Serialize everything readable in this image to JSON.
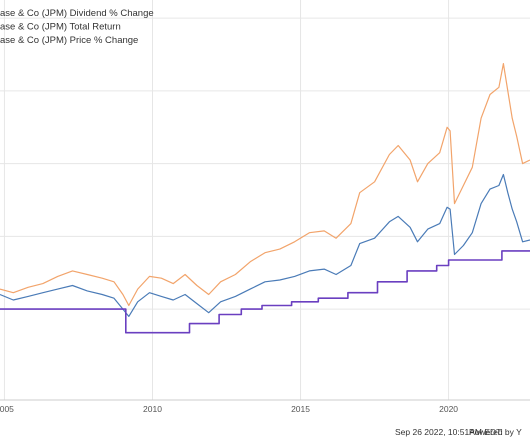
{
  "footer": {
    "timestamp": "Sep 26 2022, 10:51AM EDT.",
    "powered_by": "Powered by Y"
  },
  "colors": {
    "dividend": "#6a3fc0",
    "total_return": "#f2a46b",
    "price": "#4a7bb7",
    "grid": "#e6e6e6"
  },
  "chart_data": {
    "type": "line",
    "x_tick_labels": [
      "2005",
      "2010",
      "2015",
      "2020"
    ],
    "xlim": [
      2004.85,
      2022.75
    ],
    "ylim": [
      -0.5,
      1.7
    ],
    "y_gridlines": [
      0,
      0.4,
      0.8,
      1.2,
      1.6
    ],
    "grid": true,
    "legend_position": "top-left",
    "series": [
      {
        "key": "dividend",
        "name": "ase & Co (JPM) Dividend % Change",
        "color": "#6a3fc0",
        "step": true,
        "points": [
          [
            2004.85,
            0.0
          ],
          [
            2009.1,
            0.0
          ],
          [
            2009.1,
            -0.13
          ],
          [
            2010.15,
            -0.13
          ],
          [
            2010.15,
            -0.13
          ],
          [
            2011.25,
            -0.13
          ],
          [
            2011.25,
            -0.08
          ],
          [
            2012.25,
            -0.08
          ],
          [
            2012.25,
            -0.03
          ],
          [
            2013.0,
            -0.03
          ],
          [
            2013.0,
            0.0
          ],
          [
            2013.7,
            0.0
          ],
          [
            2013.7,
            0.02
          ],
          [
            2014.7,
            0.02
          ],
          [
            2014.7,
            0.04
          ],
          [
            2015.6,
            0.04
          ],
          [
            2015.6,
            0.06
          ],
          [
            2016.6,
            0.06
          ],
          [
            2016.6,
            0.09
          ],
          [
            2017.6,
            0.09
          ],
          [
            2017.6,
            0.15
          ],
          [
            2018.6,
            0.15
          ],
          [
            2018.6,
            0.21
          ],
          [
            2019.6,
            0.21
          ],
          [
            2019.6,
            0.24
          ],
          [
            2020.0,
            0.24
          ],
          [
            2020.0,
            0.27
          ],
          [
            2021.8,
            0.27
          ],
          [
            2021.8,
            0.32
          ],
          [
            2022.75,
            0.32
          ]
        ]
      },
      {
        "key": "total_return",
        "name": "ase & Co (JPM) Total Return",
        "color": "#f2a46b",
        "step": false,
        "points": [
          [
            2004.85,
            0.11
          ],
          [
            2005.3,
            0.09
          ],
          [
            2005.8,
            0.12
          ],
          [
            2006.3,
            0.14
          ],
          [
            2006.8,
            0.18
          ],
          [
            2007.3,
            0.21
          ],
          [
            2007.8,
            0.19
          ],
          [
            2008.3,
            0.17
          ],
          [
            2008.7,
            0.15
          ],
          [
            2009.0,
            0.08
          ],
          [
            2009.2,
            0.02
          ],
          [
            2009.5,
            0.11
          ],
          [
            2009.9,
            0.18
          ],
          [
            2010.3,
            0.17
          ],
          [
            2010.7,
            0.14
          ],
          [
            2011.1,
            0.19
          ],
          [
            2011.5,
            0.13
          ],
          [
            2011.9,
            0.08
          ],
          [
            2012.3,
            0.15
          ],
          [
            2012.8,
            0.19
          ],
          [
            2013.3,
            0.26
          ],
          [
            2013.8,
            0.31
          ],
          [
            2014.3,
            0.33
          ],
          [
            2014.8,
            0.37
          ],
          [
            2015.3,
            0.42
          ],
          [
            2015.8,
            0.43
          ],
          [
            2016.2,
            0.39
          ],
          [
            2016.7,
            0.47
          ],
          [
            2017.0,
            0.64
          ],
          [
            2017.5,
            0.7
          ],
          [
            2018.0,
            0.85
          ],
          [
            2018.3,
            0.9
          ],
          [
            2018.7,
            0.82
          ],
          [
            2018.95,
            0.7
          ],
          [
            2019.3,
            0.8
          ],
          [
            2019.7,
            0.86
          ],
          [
            2019.95,
            1.0
          ],
          [
            2020.05,
            0.98
          ],
          [
            2020.2,
            0.58
          ],
          [
            2020.5,
            0.68
          ],
          [
            2020.8,
            0.78
          ],
          [
            2021.1,
            1.05
          ],
          [
            2021.4,
            1.18
          ],
          [
            2021.7,
            1.22
          ],
          [
            2021.85,
            1.35
          ],
          [
            2022.0,
            1.2
          ],
          [
            2022.15,
            1.05
          ],
          [
            2022.3,
            0.95
          ],
          [
            2022.5,
            0.8
          ],
          [
            2022.75,
            0.82
          ]
        ]
      },
      {
        "key": "price",
        "name": "ase & Co (JPM) Price % Change",
        "color": "#4a7bb7",
        "step": false,
        "points": [
          [
            2004.85,
            0.08
          ],
          [
            2005.3,
            0.05
          ],
          [
            2005.8,
            0.07
          ],
          [
            2006.3,
            0.09
          ],
          [
            2006.8,
            0.11
          ],
          [
            2007.3,
            0.13
          ],
          [
            2007.8,
            0.1
          ],
          [
            2008.3,
            0.08
          ],
          [
            2008.7,
            0.06
          ],
          [
            2009.0,
            0.0
          ],
          [
            2009.2,
            -0.04
          ],
          [
            2009.5,
            0.04
          ],
          [
            2009.9,
            0.09
          ],
          [
            2010.3,
            0.07
          ],
          [
            2010.7,
            0.05
          ],
          [
            2011.1,
            0.08
          ],
          [
            2011.5,
            0.03
          ],
          [
            2011.9,
            -0.02
          ],
          [
            2012.3,
            0.04
          ],
          [
            2012.8,
            0.07
          ],
          [
            2013.3,
            0.11
          ],
          [
            2013.8,
            0.15
          ],
          [
            2014.3,
            0.16
          ],
          [
            2014.8,
            0.18
          ],
          [
            2015.3,
            0.21
          ],
          [
            2015.8,
            0.22
          ],
          [
            2016.2,
            0.19
          ],
          [
            2016.7,
            0.24
          ],
          [
            2017.0,
            0.36
          ],
          [
            2017.5,
            0.39
          ],
          [
            2018.0,
            0.48
          ],
          [
            2018.3,
            0.51
          ],
          [
            2018.7,
            0.45
          ],
          [
            2018.95,
            0.37
          ],
          [
            2019.3,
            0.44
          ],
          [
            2019.7,
            0.47
          ],
          [
            2019.95,
            0.56
          ],
          [
            2020.05,
            0.55
          ],
          [
            2020.2,
            0.3
          ],
          [
            2020.5,
            0.35
          ],
          [
            2020.8,
            0.42
          ],
          [
            2021.1,
            0.58
          ],
          [
            2021.4,
            0.66
          ],
          [
            2021.7,
            0.68
          ],
          [
            2021.85,
            0.74
          ],
          [
            2022.0,
            0.64
          ],
          [
            2022.15,
            0.55
          ],
          [
            2022.3,
            0.48
          ],
          [
            2022.5,
            0.37
          ],
          [
            2022.75,
            0.38
          ]
        ]
      }
    ]
  }
}
